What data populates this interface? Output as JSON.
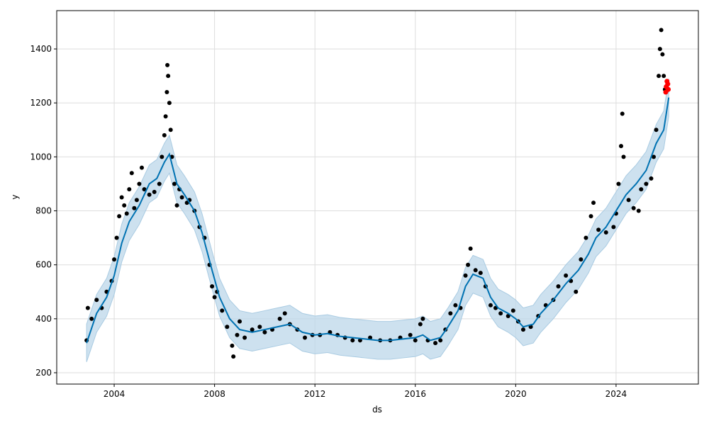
{
  "chart_data": {
    "type": "scatter",
    "title": "",
    "xlabel": "ds",
    "ylabel": "y",
    "xlim": [
      2001.71,
      2027.28
    ],
    "ylim": [
      158,
      1542
    ],
    "grid": true,
    "xticks": [
      2004,
      2008,
      2012,
      2016,
      2020,
      2024
    ],
    "xtick_labels": [
      "2004",
      "2008",
      "2012",
      "2016",
      "2020",
      "2024"
    ],
    "yticks": [
      200,
      400,
      600,
      800,
      1000,
      1200,
      1400
    ],
    "ytick_labels": [
      "200",
      "400",
      "600",
      "800",
      "1000",
      "1200",
      "1400"
    ],
    "colors": {
      "observed": "#000000",
      "forecast": "#0072B2",
      "interval": "#bcd7e9",
      "highlight": "#ff0000"
    },
    "forecast": {
      "name": "yhat",
      "band_halfwidth": 70,
      "x": [
        2002.9,
        2003.3,
        2003.7,
        2004.0,
        2004.3,
        2004.6,
        2005.0,
        2005.4,
        2005.7,
        2006.0,
        2006.2,
        2006.5,
        2006.8,
        2007.2,
        2007.5,
        2007.9,
        2008.2,
        2008.6,
        2009.0,
        2009.5,
        2010.0,
        2010.5,
        2011.0,
        2011.5,
        2012.0,
        2012.5,
        2013.0,
        2013.5,
        2014.0,
        2014.5,
        2015.0,
        2015.5,
        2016.0,
        2016.3,
        2016.6,
        2017.0,
        2017.3,
        2017.7,
        2018.0,
        2018.3,
        2018.7,
        2019.0,
        2019.3,
        2019.7,
        2020.0,
        2020.3,
        2020.7,
        2021.0,
        2021.5,
        2022.0,
        2022.5,
        2022.9,
        2023.2,
        2023.6,
        2024.0,
        2024.4,
        2024.8,
        2025.2,
        2025.6,
        2025.9,
        2026.1
      ],
      "y": [
        310,
        420,
        480,
        560,
        680,
        760,
        820,
        900,
        920,
        980,
        1010,
        900,
        860,
        800,
        720,
        580,
        480,
        400,
        360,
        350,
        360,
        370,
        380,
        350,
        340,
        345,
        335,
        330,
        325,
        320,
        320,
        325,
        330,
        340,
        320,
        330,
        370,
        430,
        520,
        565,
        550,
        480,
        440,
        420,
        400,
        370,
        380,
        420,
        470,
        530,
        580,
        640,
        700,
        740,
        800,
        860,
        900,
        950,
        1050,
        1100,
        1220
      ]
    },
    "observed": {
      "name": "y",
      "points": [
        [
          2002.9,
          320
        ],
        [
          2002.95,
          440
        ],
        [
          2003.1,
          400
        ],
        [
          2003.3,
          470
        ],
        [
          2003.5,
          440
        ],
        [
          2003.7,
          500
        ],
        [
          2003.9,
          540
        ],
        [
          2004.0,
          620
        ],
        [
          2004.1,
          700
        ],
        [
          2004.2,
          780
        ],
        [
          2004.3,
          850
        ],
        [
          2004.4,
          820
        ],
        [
          2004.5,
          790
        ],
        [
          2004.6,
          880
        ],
        [
          2004.7,
          940
        ],
        [
          2004.8,
          810
        ],
        [
          2004.9,
          840
        ],
        [
          2005.0,
          900
        ],
        [
          2005.1,
          960
        ],
        [
          2005.2,
          880
        ],
        [
          2005.4,
          860
        ],
        [
          2005.6,
          870
        ],
        [
          2005.8,
          900
        ],
        [
          2005.9,
          1000
        ],
        [
          2006.0,
          1080
        ],
        [
          2006.05,
          1150
        ],
        [
          2006.1,
          1240
        ],
        [
          2006.12,
          1340
        ],
        [
          2006.15,
          1300
        ],
        [
          2006.2,
          1200
        ],
        [
          2006.25,
          1100
        ],
        [
          2006.3,
          1000
        ],
        [
          2006.4,
          900
        ],
        [
          2006.5,
          820
        ],
        [
          2006.6,
          880
        ],
        [
          2006.7,
          850
        ],
        [
          2006.9,
          830
        ],
        [
          2007.0,
          840
        ],
        [
          2007.2,
          800
        ],
        [
          2007.4,
          740
        ],
        [
          2007.6,
          700
        ],
        [
          2007.8,
          600
        ],
        [
          2007.9,
          520
        ],
        [
          2008.0,
          480
        ],
        [
          2008.1,
          500
        ],
        [
          2008.3,
          430
        ],
        [
          2008.5,
          370
        ],
        [
          2008.7,
          300
        ],
        [
          2008.75,
          260
        ],
        [
          2008.9,
          340
        ],
        [
          2009.0,
          390
        ],
        [
          2009.2,
          330
        ],
        [
          2009.5,
          360
        ],
        [
          2009.8,
          370
        ],
        [
          2010.0,
          350
        ],
        [
          2010.3,
          360
        ],
        [
          2010.6,
          400
        ],
        [
          2010.8,
          420
        ],
        [
          2011.0,
          380
        ],
        [
          2011.3,
          360
        ],
        [
          2011.6,
          330
        ],
        [
          2011.9,
          340
        ],
        [
          2012.2,
          340
        ],
        [
          2012.6,
          350
        ],
        [
          2012.9,
          340
        ],
        [
          2013.2,
          330
        ],
        [
          2013.5,
          320
        ],
        [
          2013.8,
          320
        ],
        [
          2014.2,
          330
        ],
        [
          2014.6,
          320
        ],
        [
          2015.0,
          320
        ],
        [
          2015.4,
          330
        ],
        [
          2015.8,
          340
        ],
        [
          2016.0,
          320
        ],
        [
          2016.2,
          380
        ],
        [
          2016.3,
          400
        ],
        [
          2016.5,
          320
        ],
        [
          2016.8,
          310
        ],
        [
          2017.0,
          320
        ],
        [
          2017.2,
          360
        ],
        [
          2017.4,
          420
        ],
        [
          2017.6,
          450
        ],
        [
          2017.8,
          440
        ],
        [
          2018.0,
          560
        ],
        [
          2018.1,
          600
        ],
        [
          2018.2,
          660
        ],
        [
          2018.4,
          580
        ],
        [
          2018.6,
          570
        ],
        [
          2018.8,
          520
        ],
        [
          2019.0,
          450
        ],
        [
          2019.2,
          440
        ],
        [
          2019.4,
          420
        ],
        [
          2019.7,
          410
        ],
        [
          2019.9,
          430
        ],
        [
          2020.1,
          390
        ],
        [
          2020.3,
          360
        ],
        [
          2020.6,
          370
        ],
        [
          2020.9,
          410
        ],
        [
          2021.2,
          450
        ],
        [
          2021.5,
          470
        ],
        [
          2021.7,
          520
        ],
        [
          2022.0,
          560
        ],
        [
          2022.2,
          540
        ],
        [
          2022.4,
          500
        ],
        [
          2022.6,
          620
        ],
        [
          2022.8,
          700
        ],
        [
          2023.0,
          780
        ],
        [
          2023.1,
          830
        ],
        [
          2023.3,
          730
        ],
        [
          2023.6,
          720
        ],
        [
          2023.9,
          740
        ],
        [
          2024.0,
          790
        ],
        [
          2024.1,
          900
        ],
        [
          2024.2,
          1040
        ],
        [
          2024.25,
          1160
        ],
        [
          2024.3,
          1000
        ],
        [
          2024.5,
          840
        ],
        [
          2024.7,
          810
        ],
        [
          2024.9,
          800
        ],
        [
          2025.0,
          880
        ],
        [
          2025.2,
          900
        ],
        [
          2025.4,
          920
        ],
        [
          2025.5,
          1000
        ],
        [
          2025.6,
          1100
        ],
        [
          2025.7,
          1300
        ],
        [
          2025.75,
          1400
        ],
        [
          2025.8,
          1470
        ],
        [
          2025.85,
          1380
        ],
        [
          2025.9,
          1300
        ],
        [
          2025.95,
          1250
        ]
      ]
    },
    "highlighted": {
      "name": "recent",
      "points": [
        [
          2025.98,
          1240
        ],
        [
          2026.0,
          1260
        ],
        [
          2026.03,
          1280
        ],
        [
          2026.06,
          1270
        ],
        [
          2026.08,
          1250
        ]
      ]
    }
  }
}
